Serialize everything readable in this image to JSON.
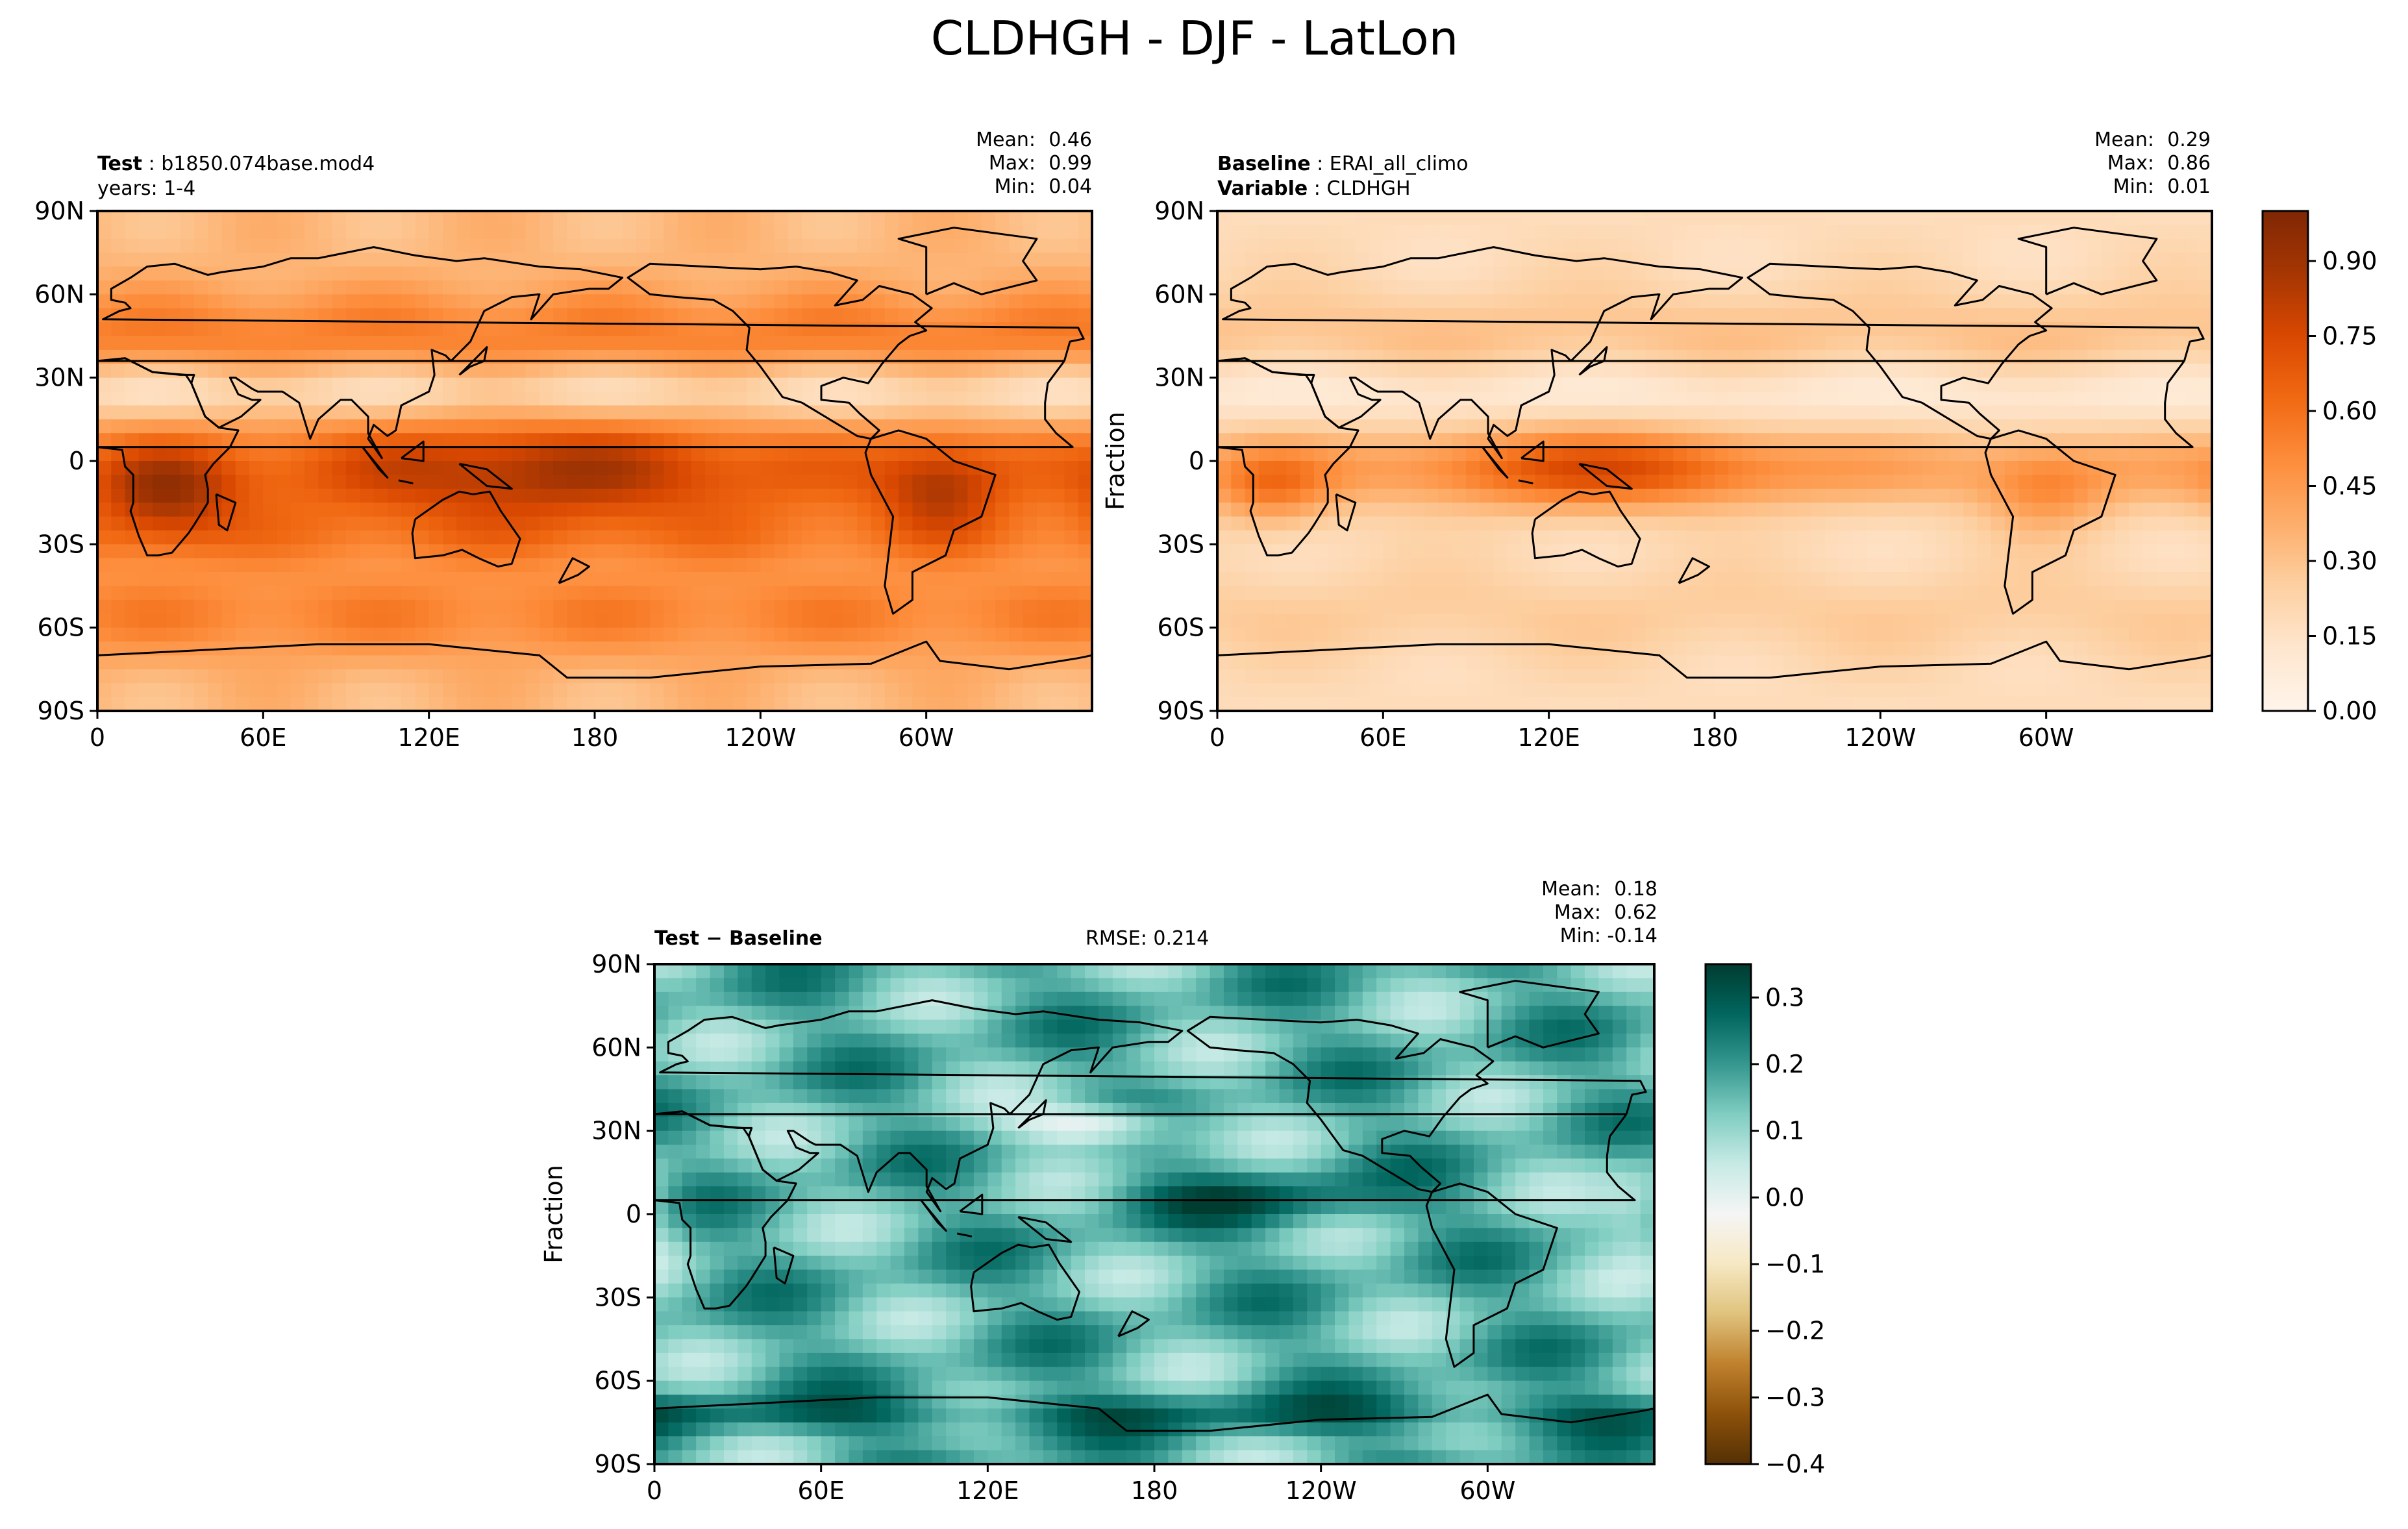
{
  "figure_title": "CLDHGH - DJF - LatLon",
  "chart_data": [
    {
      "type": "heatmap",
      "panel": "test",
      "field": "CLDHGH",
      "season": "DJF",
      "header": {
        "label": "Test",
        "value": "b1850.074base.mod4",
        "line2": "years: 1-4"
      },
      "stats": {
        "mean": "0.46",
        "max": "0.99",
        "min": "0.04"
      },
      "ylabel": "",
      "xticks": [
        "0",
        "60E",
        "120E",
        "180",
        "120W",
        "60W"
      ],
      "yticks": [
        "90N",
        "60N",
        "30N",
        "0",
        "30S",
        "60S",
        "90S"
      ],
      "xlim": [
        0,
        360
      ],
      "ylim": [
        -90,
        90
      ],
      "colormap": "Oranges",
      "value_range": [
        0.0,
        1.0
      ]
    },
    {
      "type": "heatmap",
      "panel": "baseline",
      "field": "CLDHGH",
      "season": "DJF",
      "header": {
        "label": "Baseline",
        "value": "ERAI_all_climo",
        "label2": "Variable",
        "value2": "CLDHGH"
      },
      "stats": {
        "mean": "0.29",
        "max": "0.86",
        "min": "0.01"
      },
      "ylabel": "Fraction",
      "xticks": [
        "0",
        "60E",
        "120E",
        "180",
        "120W",
        "60W"
      ],
      "yticks": [
        "90N",
        "60N",
        "30N",
        "0",
        "30S",
        "60S",
        "90S"
      ],
      "xlim": [
        0,
        360
      ],
      "ylim": [
        -90,
        90
      ],
      "colormap": "Oranges",
      "colorbar_ticks": [
        "0.00",
        "0.15",
        "0.30",
        "0.45",
        "0.60",
        "0.75",
        "0.90"
      ],
      "colorbar_tick_values": [
        0,
        0.15,
        0.3,
        0.45,
        0.6,
        0.75,
        0.9
      ],
      "value_range": [
        0.0,
        1.0
      ]
    },
    {
      "type": "heatmap",
      "panel": "difference",
      "field": "CLDHGH",
      "season": "DJF",
      "header": {
        "label": "Test − Baseline"
      },
      "rmse": "RMSE: 0.214",
      "stats": {
        "mean": "0.18",
        "max": "0.62",
        "min": "-0.14"
      },
      "ylabel": "Fraction",
      "xticks": [
        "0",
        "60E",
        "120E",
        "180",
        "120W",
        "60W"
      ],
      "yticks": [
        "90N",
        "60N",
        "30N",
        "0",
        "30S",
        "60S",
        "90S"
      ],
      "xlim": [
        0,
        360
      ],
      "ylim": [
        -90,
        90
      ],
      "colormap": "BrBG",
      "colorbar_ticks": [
        "0.3",
        "0.2",
        "0.1",
        "0.0",
        "−0.1",
        "−0.2",
        "−0.3",
        "−0.4"
      ],
      "colorbar_tick_values": [
        0.3,
        0.2,
        0.1,
        0.0,
        -0.1,
        -0.2,
        -0.3,
        -0.4
      ],
      "value_range": [
        -0.4,
        0.35
      ]
    }
  ],
  "labels": {
    "mean": "Mean:",
    "max": "Max:",
    "min": "Min:"
  },
  "colors": {
    "oranges": [
      "#fff5eb",
      "#fee6ce",
      "#fdd0a2",
      "#fdae6b",
      "#fd8d3c",
      "#f16913",
      "#d94801",
      "#a63603",
      "#7f2704"
    ],
    "brbg": [
      "#543005",
      "#8c510a",
      "#bf812d",
      "#dfc27d",
      "#f6e8c3",
      "#f5f5f5",
      "#c7eae5",
      "#80cdc1",
      "#35978f",
      "#01665e",
      "#003c30"
    ],
    "coast": "#000000"
  }
}
